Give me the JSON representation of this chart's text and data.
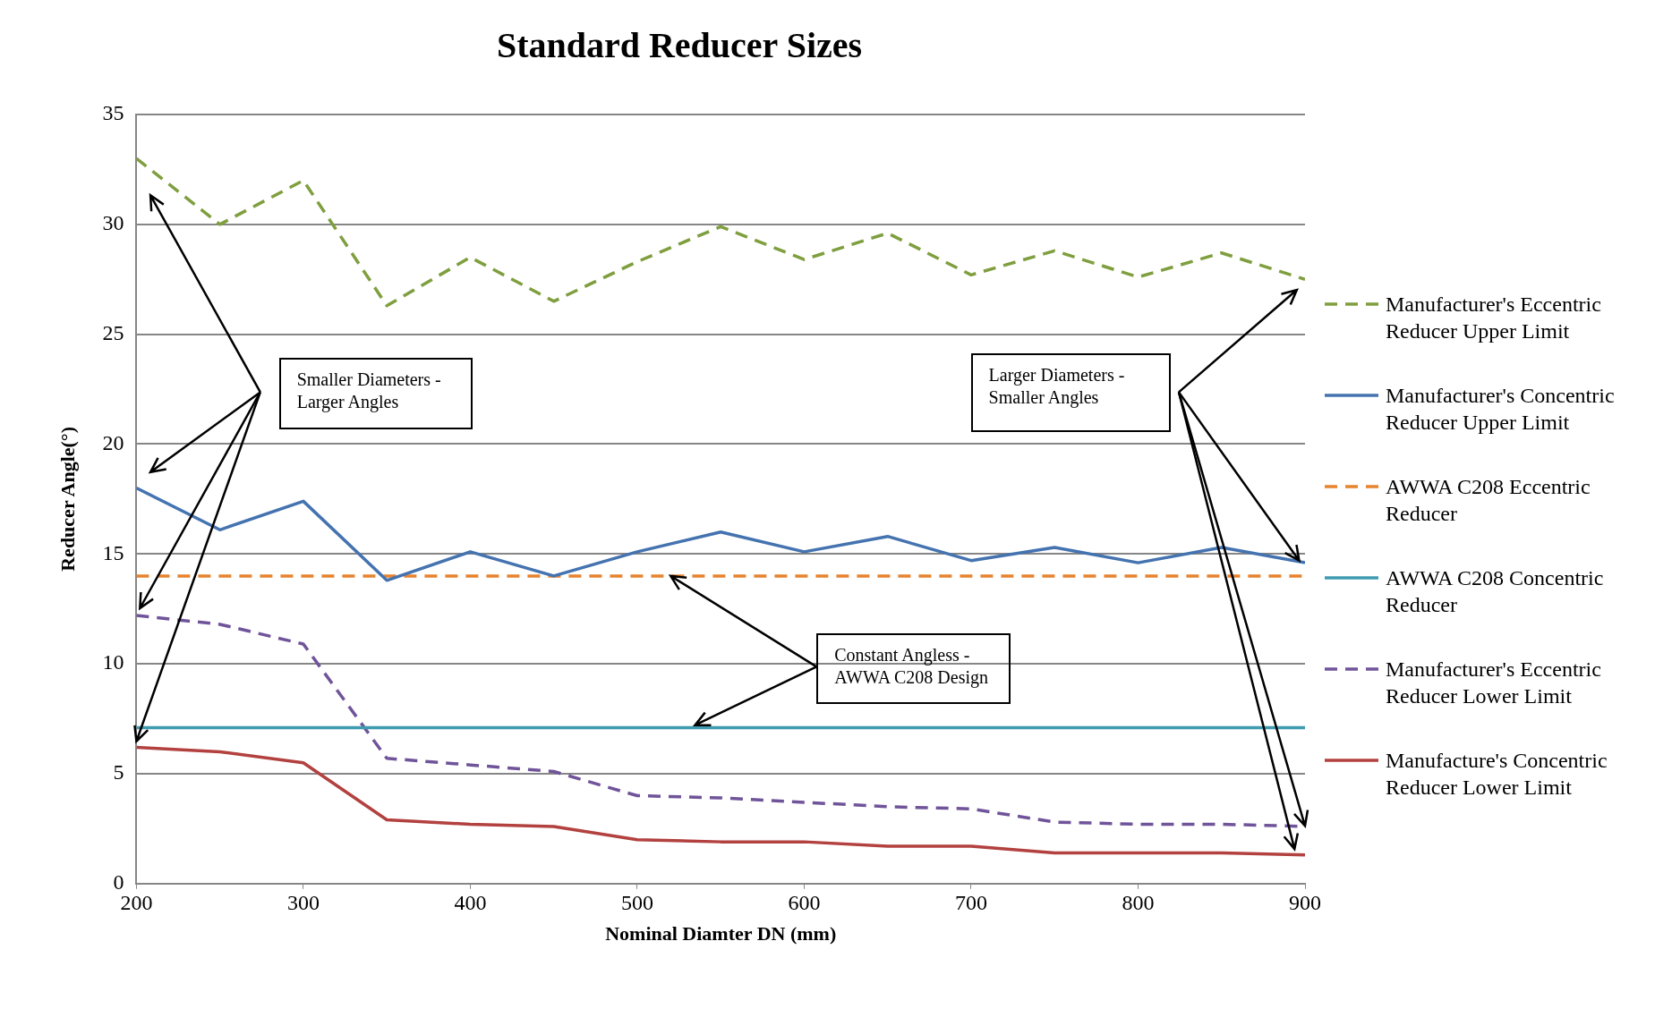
{
  "chart_data": {
    "type": "line",
    "title": "Standard Reducer Sizes",
    "xlabel": "Nominal Diamter DN (mm)",
    "ylabel": "Reducer Angle(°)",
    "x": [
      200,
      250,
      300,
      350,
      400,
      450,
      500,
      550,
      600,
      650,
      700,
      750,
      800,
      850,
      900
    ],
    "xlim": [
      200,
      900
    ],
    "xticks": [
      200,
      300,
      400,
      500,
      600,
      700,
      800,
      900
    ],
    "ylim": [
      0,
      35
    ],
    "yticks": [
      0,
      5,
      10,
      15,
      20,
      25,
      30,
      35
    ],
    "grid": "y",
    "legend": "right",
    "marker": "none",
    "series": [
      {
        "name": "Manufacturer's Eccentric Reducer Upper Limit",
        "color": "#7f9f3f",
        "line_style": "dashed",
        "values": [
          33.0,
          30.0,
          32.0,
          26.3,
          28.5,
          26.5,
          28.3,
          29.9,
          28.4,
          29.6,
          27.7,
          28.8,
          27.6,
          28.7,
          27.5
        ]
      },
      {
        "name": "Manufacturer's Concentric Reducer Upper Limit",
        "color": "#4473b0",
        "line_style": "solid",
        "values": [
          18.0,
          16.1,
          17.4,
          13.8,
          15.1,
          14.0,
          15.1,
          16.0,
          15.1,
          15.8,
          14.7,
          15.3,
          14.6,
          15.3,
          14.6
        ]
      },
      {
        "name": "AWWA C208 Eccentric Reducer",
        "color": "#e8832e",
        "line_style": "dashed",
        "values": [
          14.0,
          14.0,
          14.0,
          14.0,
          14.0,
          14.0,
          14.0,
          14.0,
          14.0,
          14.0,
          14.0,
          14.0,
          14.0,
          14.0,
          14.0
        ]
      },
      {
        "name": "AWWA C208 Concentric Reducer",
        "color": "#3f9bb0",
        "line_style": "solid",
        "values": [
          7.1,
          7.1,
          7.1,
          7.1,
          7.1,
          7.1,
          7.1,
          7.1,
          7.1,
          7.1,
          7.1,
          7.1,
          7.1,
          7.1,
          7.1
        ]
      },
      {
        "name": "Manufacturer's Eccentric Reducer Lower Limit",
        "color": "#70549a",
        "line_style": "dashed",
        "values": [
          12.2,
          11.8,
          10.9,
          5.7,
          5.4,
          5.1,
          4.0,
          3.9,
          3.7,
          3.5,
          3.4,
          2.8,
          2.7,
          2.7,
          2.6
        ]
      },
      {
        "name": "Manufacture's Concentric Reducer Lower Limit",
        "color": "#b2413f",
        "line_style": "solid",
        "values": [
          6.2,
          6.0,
          5.5,
          2.9,
          2.7,
          2.6,
          2.0,
          1.9,
          1.9,
          1.7,
          1.7,
          1.4,
          1.4,
          1.4,
          1.3
        ]
      }
    ],
    "annotations": [
      "Smaller Diameters - Larger Angles",
      "Larger Diameters - Smaller Angles",
      {
        "text": "Constant Angless - AWWA  C208 Design",
        "x": 520,
        "y": 14
      }
    ]
  }
}
